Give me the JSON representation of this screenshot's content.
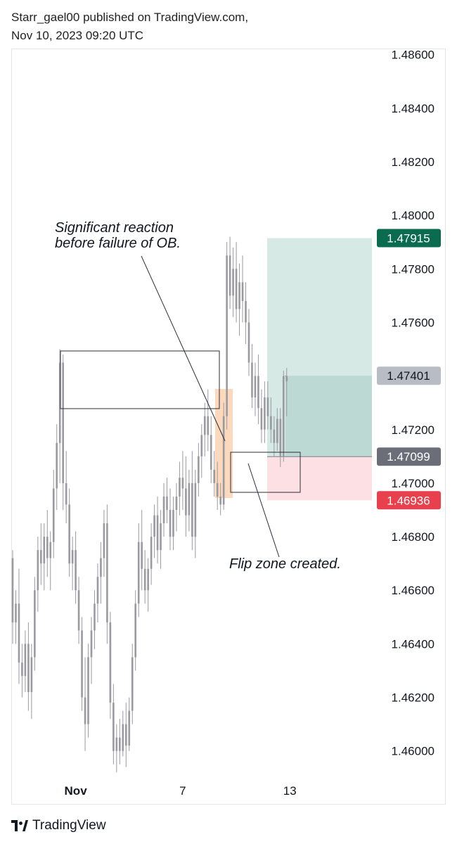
{
  "header": {
    "line1": "Starr_gael00 published on TradingView.com,",
    "line2": "Nov 10, 2023 09:20 UTC"
  },
  "footer": {
    "brand": "TradingView",
    "logo_icon": "tradingview-logo-icon"
  },
  "chart_data": {
    "type": "candlestick",
    "title": "",
    "ylim": [
      1.4591,
      1.4862
    ],
    "y_ticks": [
      "1.48600",
      "1.48400",
      "1.48200",
      "1.48000",
      "1.47800",
      "1.47600",
      "1.47200",
      "1.47000",
      "1.46800",
      "1.46600",
      "1.46400",
      "1.46200",
      "1.46000"
    ],
    "x_ticks": [
      {
        "label": "Nov",
        "index": 20,
        "bold": true
      },
      {
        "label": "7",
        "index": 54,
        "bold": false
      },
      {
        "label": "13",
        "index": 88,
        "bold": false
      }
    ],
    "candle_color": "#9a9aa0",
    "candles": [
      [
        1.4672,
        1.4675,
        1.464,
        1.4648
      ],
      [
        1.4648,
        1.466,
        1.464,
        1.4655
      ],
      [
        1.4655,
        1.4668,
        1.4625,
        1.4633
      ],
      [
        1.4633,
        1.464,
        1.462,
        1.4628
      ],
      [
        1.4628,
        1.4645,
        1.4622,
        1.464
      ],
      [
        1.464,
        1.4648,
        1.4615,
        1.4622
      ],
      [
        1.4622,
        1.464,
        1.4612,
        1.4635
      ],
      [
        1.4635,
        1.4665,
        1.463,
        1.466
      ],
      [
        1.466,
        1.468,
        1.4652,
        1.4675
      ],
      [
        1.4675,
        1.4685,
        1.4662,
        1.467
      ],
      [
        1.467,
        1.4685,
        1.466,
        1.468
      ],
      [
        1.468,
        1.469,
        1.4665,
        1.4672
      ],
      [
        1.4672,
        1.4682,
        1.466,
        1.4678
      ],
      [
        1.4678,
        1.4705,
        1.4672,
        1.4698
      ],
      [
        1.4698,
        1.4722,
        1.469,
        1.4715
      ],
      [
        1.4715,
        1.475,
        1.47,
        1.4745
      ],
      [
        1.4745,
        1.4748,
        1.469,
        1.47
      ],
      [
        1.47,
        1.4712,
        1.4685,
        1.4692
      ],
      [
        1.4692,
        1.4698,
        1.4665,
        1.467
      ],
      [
        1.467,
        1.468,
        1.466,
        1.4675
      ],
      [
        1.4675,
        1.4682,
        1.4655,
        1.466
      ],
      [
        1.466,
        1.4665,
        1.464,
        1.4645
      ],
      [
        1.4645,
        1.465,
        1.4615,
        1.462
      ],
      [
        1.462,
        1.4635,
        1.46,
        1.461
      ],
      [
        1.461,
        1.464,
        1.4605,
        1.4635
      ],
      [
        1.4635,
        1.465,
        1.4625,
        1.4645
      ],
      [
        1.4645,
        1.466,
        1.4638,
        1.4655
      ],
      [
        1.4655,
        1.467,
        1.4648,
        1.4665
      ],
      [
        1.4665,
        1.4678,
        1.4655,
        1.4672
      ],
      [
        1.4672,
        1.469,
        1.4665,
        1.4685
      ],
      [
        1.4685,
        1.4692,
        1.464,
        1.4648
      ],
      [
        1.4648,
        1.4652,
        1.4612,
        1.4618
      ],
      [
        1.4618,
        1.4625,
        1.4595,
        1.46
      ],
      [
        1.46,
        1.461,
        1.4592,
        1.4605
      ],
      [
        1.4605,
        1.4612,
        1.4595,
        1.46
      ],
      [
        1.46,
        1.4615,
        1.4598,
        1.461
      ],
      [
        1.461,
        1.4618,
        1.4594,
        1.4602
      ],
      [
        1.4602,
        1.462,
        1.46,
        1.4615
      ],
      [
        1.4615,
        1.464,
        1.461,
        1.4635
      ],
      [
        1.4635,
        1.466,
        1.463,
        1.4655
      ],
      [
        1.4655,
        1.4685,
        1.465,
        1.4678
      ],
      [
        1.4678,
        1.469,
        1.466,
        1.4668
      ],
      [
        1.4668,
        1.4675,
        1.4655,
        1.466
      ],
      [
        1.466,
        1.4672,
        1.4652,
        1.4668
      ],
      [
        1.4668,
        1.4685,
        1.4662,
        1.468
      ],
      [
        1.468,
        1.4692,
        1.4672,
        1.4688
      ],
      [
        1.4688,
        1.4695,
        1.467,
        1.4675
      ],
      [
        1.4675,
        1.469,
        1.4668,
        1.4685
      ],
      [
        1.4685,
        1.47,
        1.468,
        1.4695
      ],
      [
        1.4695,
        1.4702,
        1.4685,
        1.469
      ],
      [
        1.469,
        1.4698,
        1.4675,
        1.468
      ],
      [
        1.468,
        1.4695,
        1.4675,
        1.469
      ],
      [
        1.469,
        1.47,
        1.4682,
        1.4695
      ],
      [
        1.4695,
        1.4708,
        1.4688,
        1.4702
      ],
      [
        1.4702,
        1.4712,
        1.469,
        1.4698
      ],
      [
        1.4698,
        1.471,
        1.468,
        1.4688
      ],
      [
        1.4688,
        1.4705,
        1.4682,
        1.47
      ],
      [
        1.47,
        1.4712,
        1.4675,
        1.468
      ],
      [
        1.468,
        1.4705,
        1.4672,
        1.47
      ],
      [
        1.47,
        1.4715,
        1.4695,
        1.471
      ],
      [
        1.471,
        1.4722,
        1.4702,
        1.4718
      ],
      [
        1.4718,
        1.473,
        1.471,
        1.4725
      ],
      [
        1.4725,
        1.4735,
        1.4712,
        1.4718
      ],
      [
        1.4718,
        1.4725,
        1.47,
        1.4705
      ],
      [
        1.4705,
        1.4712,
        1.4695,
        1.47
      ],
      [
        1.47,
        1.4708,
        1.469,
        1.4695
      ],
      [
        1.4695,
        1.47,
        1.4688,
        1.4692
      ],
      [
        1.4692,
        1.473,
        1.469,
        1.4725
      ],
      [
        1.4725,
        1.479,
        1.472,
        1.4785
      ],
      [
        1.4785,
        1.4792,
        1.4765,
        1.477
      ],
      [
        1.477,
        1.4788,
        1.4762,
        1.478
      ],
      [
        1.478,
        1.479,
        1.476,
        1.4765
      ],
      [
        1.4765,
        1.4782,
        1.4755,
        1.4775
      ],
      [
        1.4775,
        1.4785,
        1.476,
        1.4768
      ],
      [
        1.4768,
        1.4775,
        1.4752,
        1.476
      ],
      [
        1.476,
        1.4765,
        1.474,
        1.4745
      ],
      [
        1.4745,
        1.4752,
        1.4728,
        1.4732
      ],
      [
        1.4732,
        1.4745,
        1.4725,
        1.474
      ],
      [
        1.474,
        1.4748,
        1.4722,
        1.4728
      ],
      [
        1.4728,
        1.4735,
        1.4715,
        1.472
      ],
      [
        1.472,
        1.4738,
        1.4715,
        1.4732
      ],
      [
        1.4732,
        1.4738,
        1.472,
        1.4725
      ],
      [
        1.4725,
        1.4732,
        1.4715,
        1.472
      ],
      [
        1.472,
        1.4725,
        1.471,
        1.4715
      ],
      [
        1.4715,
        1.4728,
        1.4712,
        1.4724
      ],
      [
        1.4724,
        1.4728,
        1.4706,
        1.471
      ],
      [
        1.471,
        1.4742,
        1.4708,
        1.474
      ],
      [
        1.474,
        1.4743,
        1.4725,
        1.4738
      ]
    ],
    "price_labels": [
      {
        "value": "1.47915",
        "bg": "#0b6b4f",
        "fg": "#ffffff"
      },
      {
        "value": "1.47401",
        "bg": "#b8bcc4",
        "fg": "#131722"
      },
      {
        "value": "1.47099",
        "bg": "#6b6e78",
        "fg": "#ffffff"
      },
      {
        "value": "1.46936",
        "bg": "#e8404c",
        "fg": "#ffffff"
      }
    ],
    "zones": {
      "target_color": "#d6e9e4",
      "target_inner_color": "#bcd9d3",
      "stop_color": "#fde0e4",
      "ob_color": "#fcd9bd"
    },
    "annotations": [
      {
        "lines": [
          "Significant reaction",
          "before failure of OB."
        ]
      },
      {
        "lines": [
          "Flip zone created."
        ]
      }
    ]
  }
}
